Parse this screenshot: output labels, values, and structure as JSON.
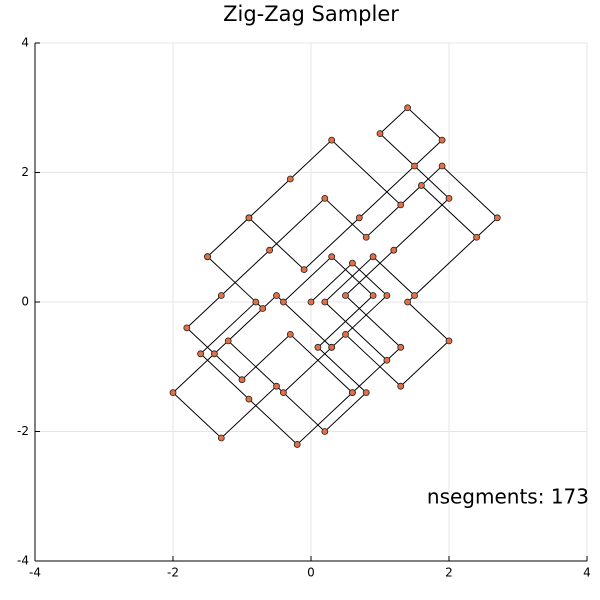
{
  "chart_data": {
    "type": "line",
    "title": "Zig-Zag Sampler",
    "annotation": "nsegments: 173",
    "x": [
      0.0,
      0.6,
      1.1,
      0.3,
      -0.5,
      -1.2,
      -0.4,
      0.5,
      1.3,
      2.0,
      1.4,
      2.4,
      1.6,
      0.8,
      0.2,
      -0.6,
      -1.3,
      -1.8,
      -1.0,
      -0.3,
      0.6,
      1.1,
      0.2,
      0.9,
      1.5,
      2.7,
      1.9,
      1.3,
      0.3,
      -0.3,
      -0.9,
      -1.5,
      -0.8,
      -1.6,
      -0.9,
      -0.2,
      0.6,
      1.3,
      0.5,
      1.2,
      2.0,
      1.5,
      1.0,
      1.4,
      1.9,
      0.7,
      -0.1,
      -0.9,
      -1.5,
      -0.7,
      -1.4,
      -2.0,
      -1.3,
      -0.5,
      0.2,
      0.8,
      0.1,
      0.9,
      0.3,
      -0.4,
      0.3
    ],
    "series": [
      {
        "color": "#000000",
        "marker_color": "#e26f46",
        "values": [
          0.0,
          0.6,
          0.1,
          -0.7,
          0.1,
          -0.6,
          -1.4,
          -0.5,
          -1.3,
          -0.6,
          0.0,
          1.0,
          1.8,
          1.0,
          1.6,
          0.8,
          0.1,
          -0.4,
          -1.2,
          -0.5,
          -1.4,
          -0.9,
          0.0,
          0.7,
          0.1,
          1.3,
          2.1,
          1.5,
          2.5,
          1.9,
          1.3,
          0.7,
          0.0,
          -0.8,
          -1.5,
          -2.2,
          -1.4,
          -0.7,
          0.1,
          0.8,
          1.6,
          2.1,
          2.6,
          3.0,
          2.5,
          1.3,
          0.5,
          1.3,
          0.7,
          -0.1,
          -0.8,
          -1.4,
          -2.1,
          -1.3,
          -2.0,
          -1.4,
          -0.7,
          0.1,
          0.7,
          0.0,
          -0.7
        ]
      }
    ],
    "xlim": [
      -4,
      4
    ],
    "ylim": [
      -4,
      4
    ],
    "xticks": [
      -4,
      -2,
      0,
      2,
      4
    ],
    "yticks": [
      -4,
      -2,
      0,
      2,
      4
    ],
    "grid": true
  }
}
